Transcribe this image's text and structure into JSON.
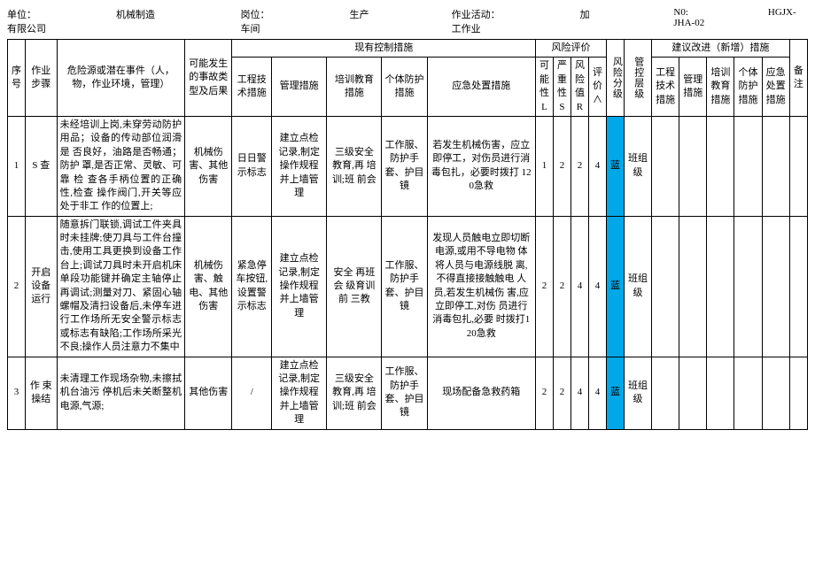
{
  "header": {
    "unit_label": "单位：",
    "unit": "机械制造有限公司",
    "post_label": "岗位：",
    "post": "生产车间",
    "activity_label": "作业活动：",
    "activity": "加工作业",
    "no_label": "N0:",
    "no": "HGJX-JHA-02"
  },
  "cols": {
    "seq": "序号",
    "step": "作业 步骤",
    "hazard": "危险源或潜在事件（人，物，作业环境，管理）",
    "event": "可能发生的事故类 型及后果",
    "current_group": "现有控制措施",
    "eng": "工程技术措施",
    "mgmt": "管理措施",
    "train": "培训教育 措施",
    "ppe": "个体防护措施",
    "emerg": "应急处置措施",
    "risk_group": "风险评价",
    "L": "可能性L",
    "S": "严重性S",
    "R": "风险值R",
    "score": "评价∧",
    "grade": "风险分级",
    "ctrl_level": "管控层级",
    "improve_group": "建议改进（新增）措施",
    "i_eng": "工程技术措施",
    "i_mgmt": "管理措施",
    "i_train": "培训教育措施",
    "i_ppe": "个体防护措施",
    "i_emerg": "应急处置措施",
    "note": "备注"
  },
  "rows": [
    {
      "seq": "1",
      "step": "S 查",
      "hazard": "未经培训上岗,未穿劳动防护 用品；设备的传动部位润滑是 否良好，油路是否畅通；防护 罩,是否正常、灵敏、可靠 检 查各手柄位置的正确性,检查 操作阀门,开关等应处于非工 作的位置上;",
      "event": "机械伤害、其他伤害",
      "eng": "日日警示标志",
      "mgmt": "建立点检 记录,制定 操作规程 并上墙管 理",
      "train": "三级安全 教育,再 培训;班 前会",
      "ppe": "工作服、防护手 套、护目 镜",
      "emerg": "若发生机械伤害，应立即停工，对伤员进行消毒包扎，必要时拨打 120急救",
      "L": "1",
      "S": "2",
      "R": "2",
      "score": "4",
      "grade_color": "#00a8e8",
      "grade": "蓝",
      "ctrl_level": "班组级"
    },
    {
      "seq": "2",
      "step": "开启 设备 运行",
      "hazard": "随意拆门联锁,调试工件夹具 时未挂牌;使刀具与工件台撞 击,使用工具更换到设备工作 台上;调试刀具时未开启机床 单段功能键并确定主轴停止 再调试;测量对刀、紧固心轴螺帽及清扫设备后,未停车进行工作场所无安全警示标志 或标志有缺陷;工作场所采光 不良;操作人员注意力不集中",
      "event": "机械伤害、触电、其他伤害",
      "eng": "紧急停车按钮,设置警示标志",
      "mgmt": "建立点检 记录,制定 操作规程 并上墙管 理",
      "train": "安全 再班 会 级育训前 三教",
      "ppe": "工作服、防护手 套、护目 镜",
      "emerg": "发现人员触电立即切断电源,或用不导电物 体将人员与电源线脱 离,不得直接接触触电 人员,若发生机械伤 害,应立即停工,对伤 员进行消毒包扎,必要 时拨打120急救",
      "L": "2",
      "S": "2",
      "R": "4",
      "score": "4",
      "grade_color": "#00a8e8",
      "grade": "蓝",
      "ctrl_level": "班组级"
    },
    {
      "seq": "3",
      "step": "作 束 操结",
      "hazard": "未清理工作现场杂物,未擦拭 机台油污 停机后未关断整机 电源,气源;",
      "event": "其他伤害",
      "eng": "/",
      "mgmt": "建立点检 记录,制定 操作规程 并上墙管 理",
      "train": "三级安全 教育,再 培训;班 前会",
      "ppe": "工作服、防护手 套、护目 镜",
      "emerg": "现场配备急救药箱",
      "L": "2",
      "S": "2",
      "R": "4",
      "score": "4",
      "grade_color": "#00a8e8",
      "grade": "蓝",
      "ctrl_level": "班组级"
    }
  ]
}
